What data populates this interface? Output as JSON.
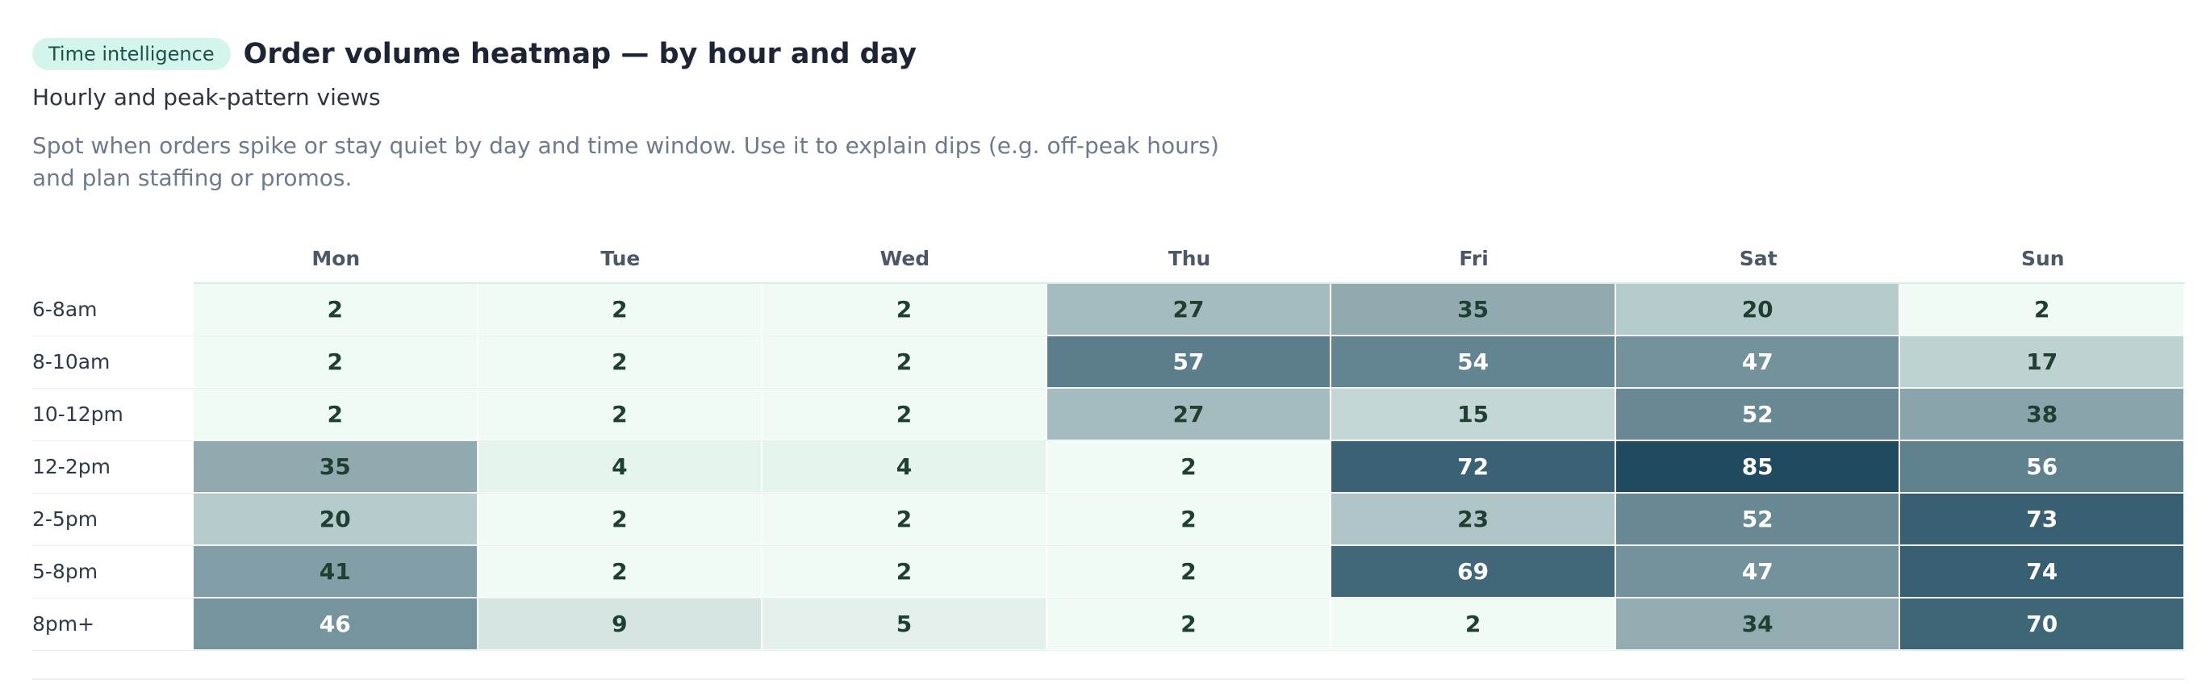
{
  "header": {
    "badge": "Time intelligence",
    "title": "Order volume heatmap — by hour and day",
    "subtitle": "Hourly and peak-pattern views",
    "description": "Spot when orders spike or stay quiet by day and time window. Use it to explain dips (e.g. off-peak hours) and plan staffing or promos."
  },
  "colors": {
    "low": "#effbf4",
    "high": "#1f4a60",
    "text_dark": "#1f3f30",
    "text_light": "#ffffff"
  },
  "chart_data": {
    "type": "heatmap",
    "x": [
      "Mon",
      "Tue",
      "Wed",
      "Thu",
      "Fri",
      "Sat",
      "Sun"
    ],
    "y": [
      "6-8am",
      "8-10am",
      "10-12pm",
      "12-2pm",
      "2-5pm",
      "5-8pm",
      "8pm+"
    ],
    "values": [
      [
        2,
        2,
        2,
        27,
        35,
        20,
        2
      ],
      [
        2,
        2,
        2,
        57,
        54,
        47,
        17
      ],
      [
        2,
        2,
        2,
        27,
        15,
        52,
        38
      ],
      [
        35,
        4,
        4,
        2,
        72,
        85,
        56
      ],
      [
        20,
        2,
        2,
        2,
        23,
        52,
        73
      ],
      [
        41,
        2,
        2,
        2,
        69,
        47,
        74
      ],
      [
        46,
        9,
        5,
        2,
        2,
        34,
        70
      ]
    ],
    "value_range": [
      2,
      85
    ]
  }
}
